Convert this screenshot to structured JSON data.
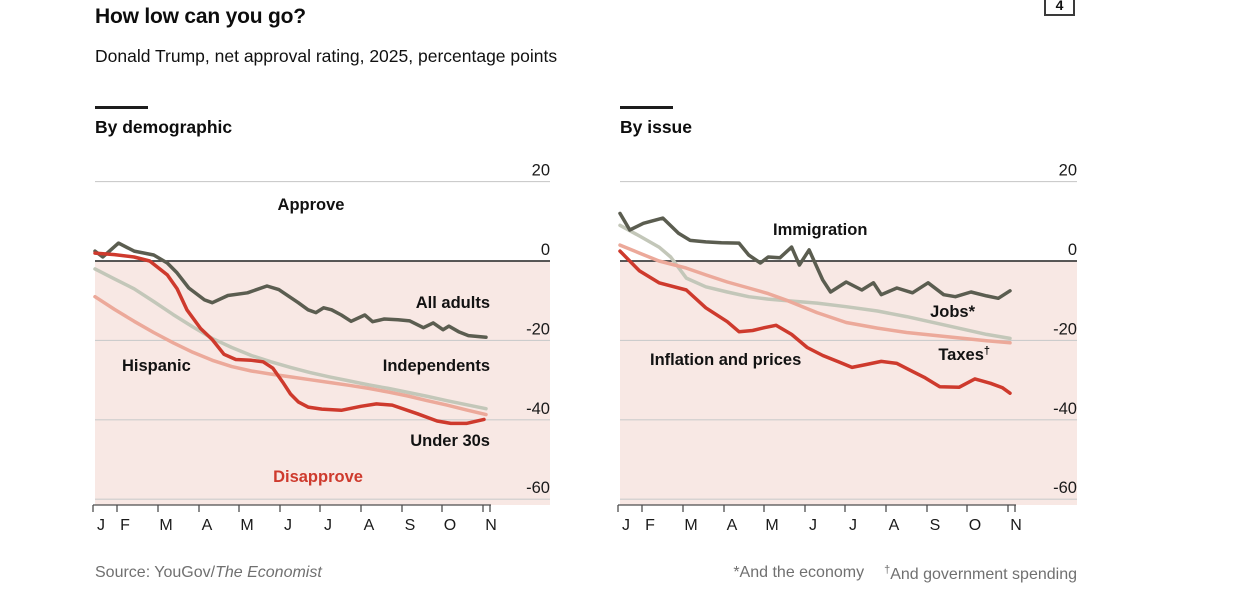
{
  "page": {
    "badge": "4"
  },
  "header": {
    "title": "How low can you go?",
    "subtitle": "Donald Trump, net approval rating, 2025, percentage points"
  },
  "footer": {
    "source_prefix": "Source: YouGov/",
    "source_italic": "The Economist",
    "footnote1": "*And the economy",
    "footnote2_symbol": "†",
    "footnote2": "And government spending"
  },
  "chart_data": [
    {
      "type": "line",
      "panel_title": "By demographic",
      "x_axis": {
        "tick_labels": [
          "J",
          "F",
          "M",
          "A",
          "M",
          "J",
          "J",
          "A",
          "S",
          "O",
          "N"
        ]
      },
      "y_axis": {
        "ticks": [
          20,
          0,
          -20,
          -40,
          -60
        ],
        "range": [
          -65,
          25
        ]
      },
      "annotations": {
        "approve": "Approve",
        "disapprove": "Disapprove"
      },
      "colors": {
        "below_zero_fill": "#f8e8e4",
        "gridline": "#cccccc",
        "zero_line": "#404040",
        "axis": "#4d4d4d"
      },
      "series": [
        {
          "name": "Independents",
          "color": "#c3c7b9",
          "points": [
            [
              0,
              -2
            ],
            [
              0.5,
              -4.5
            ],
            [
              1,
              -7
            ],
            [
              1.5,
              -10.2
            ],
            [
              2,
              -13.5
            ],
            [
              2.5,
              -16.6
            ],
            [
              3,
              -19.5
            ],
            [
              3.5,
              -21.8
            ],
            [
              4,
              -23.8
            ],
            [
              4.5,
              -25.4
            ],
            [
              5,
              -26.8
            ],
            [
              5.5,
              -28.1
            ],
            [
              6,
              -29.2
            ],
            [
              6.5,
              -30.2
            ],
            [
              7,
              -31.2
            ],
            [
              7.5,
              -32.1
            ],
            [
              8,
              -33.1
            ],
            [
              8.5,
              -34.1
            ],
            [
              9,
              -35.2
            ],
            [
              9.5,
              -36.2
            ],
            [
              10,
              -37.2
            ]
          ]
        },
        {
          "name": "Hispanic",
          "color": "#eca99a",
          "points": [
            [
              0,
              -9
            ],
            [
              0.5,
              -12.2
            ],
            [
              1,
              -15.2
            ],
            [
              1.5,
              -18
            ],
            [
              2,
              -20.6
            ],
            [
              2.5,
              -23
            ],
            [
              3,
              -25
            ],
            [
              3.5,
              -26.6
            ],
            [
              4,
              -27.7
            ],
            [
              4.5,
              -28.5
            ],
            [
              5,
              -29.2
            ],
            [
              5.5,
              -29.9
            ],
            [
              6,
              -30.6
            ],
            [
              6.5,
              -31.3
            ],
            [
              7,
              -32.1
            ],
            [
              7.5,
              -33
            ],
            [
              8,
              -34
            ],
            [
              8.5,
              -35.2
            ],
            [
              9,
              -36.3
            ],
            [
              9.5,
              -37.5
            ],
            [
              10,
              -38.7
            ]
          ]
        },
        {
          "name": "All adults",
          "color": "#5b5d50",
          "points": [
            [
              0,
              2.5
            ],
            [
              0.2,
              1
            ],
            [
              0.6,
              4.5
            ],
            [
              1,
              2.5
            ],
            [
              1.5,
              1.5
            ],
            [
              1.85,
              -0.5
            ],
            [
              2.1,
              -3
            ],
            [
              2.4,
              -6.8
            ],
            [
              2.8,
              -9.8
            ],
            [
              3,
              -10.5
            ],
            [
              3.4,
              -8.7
            ],
            [
              3.9,
              -8
            ],
            [
              4.4,
              -6.3
            ],
            [
              4.7,
              -7.2
            ],
            [
              5.2,
              -10.5
            ],
            [
              5.45,
              -12.3
            ],
            [
              5.65,
              -13
            ],
            [
              5.85,
              -11.8
            ],
            [
              6.05,
              -12.3
            ],
            [
              6.3,
              -13.6
            ],
            [
              6.55,
              -15.2
            ],
            [
              6.9,
              -13.6
            ],
            [
              7.1,
              -15.3
            ],
            [
              7.4,
              -14.6
            ],
            [
              7.75,
              -14.8
            ],
            [
              8.05,
              -15.1
            ],
            [
              8.4,
              -16.8
            ],
            [
              8.65,
              -15.6
            ],
            [
              8.9,
              -17.3
            ],
            [
              9.05,
              -16.4
            ],
            [
              9.3,
              -17.8
            ],
            [
              9.55,
              -18.8
            ],
            [
              10,
              -19.2
            ]
          ]
        },
        {
          "name": "Under 30s",
          "color": "#ce3a2d",
          "points": [
            [
              0,
              2
            ],
            [
              0.5,
              1.6
            ],
            [
              1,
              1
            ],
            [
              1.4,
              0
            ],
            [
              1.85,
              -3.5
            ],
            [
              2.1,
              -7
            ],
            [
              2.35,
              -12.3
            ],
            [
              2.7,
              -17
            ],
            [
              3,
              -19.8
            ],
            [
              3.3,
              -23.5
            ],
            [
              3.6,
              -24.8
            ],
            [
              4,
              -25
            ],
            [
              4.3,
              -25.4
            ],
            [
              4.55,
              -27
            ],
            [
              4.8,
              -30.5
            ],
            [
              5,
              -33.5
            ],
            [
              5.2,
              -35.5
            ],
            [
              5.45,
              -36.8
            ],
            [
              5.8,
              -37.3
            ],
            [
              6.3,
              -37.6
            ],
            [
              6.8,
              -36.6
            ],
            [
              7.2,
              -36
            ],
            [
              7.6,
              -36.3
            ],
            [
              8.25,
              -38.5
            ],
            [
              8.75,
              -40.3
            ],
            [
              9.1,
              -40.9
            ],
            [
              9.5,
              -40.9
            ],
            [
              9.95,
              -39.9
            ]
          ]
        }
      ]
    },
    {
      "type": "line",
      "panel_title": "By issue",
      "x_axis": {
        "tick_labels": [
          "J",
          "F",
          "M",
          "A",
          "M",
          "J",
          "J",
          "A",
          "S",
          "O",
          "N"
        ]
      },
      "y_axis": {
        "ticks": [
          20,
          0,
          -20,
          -40,
          -60
        ],
        "range": [
          -65,
          25
        ]
      },
      "annotations": {
        "taxes_base": "Taxes",
        "taxes_sup": "†"
      },
      "colors": {
        "below_zero_fill": "#f8e8e4",
        "gridline": "#cccccc",
        "zero_line": "#404040",
        "axis": "#4d4d4d"
      },
      "series": [
        {
          "name": "Jobs*",
          "color": "#c3c7b9",
          "points": [
            [
              0,
              9
            ],
            [
              0.5,
              6.3
            ],
            [
              1,
              3.5
            ],
            [
              1.3,
              1
            ],
            [
              1.7,
              -4.3
            ],
            [
              2.2,
              -6.5
            ],
            [
              2.75,
              -7.8
            ],
            [
              3.3,
              -9
            ],
            [
              3.8,
              -9.6
            ],
            [
              4.3,
              -10
            ],
            [
              5.05,
              -10.6
            ],
            [
              5.8,
              -11.5
            ],
            [
              6.6,
              -12.6
            ],
            [
              7.35,
              -14
            ],
            [
              8.4,
              -16.3
            ],
            [
              9.4,
              -18.5
            ],
            [
              10,
              -19.5
            ]
          ]
        },
        {
          "name": "Taxes†",
          "color": "#eca99a",
          "points": [
            [
              0,
              4
            ],
            [
              0.5,
              2
            ],
            [
              1,
              0
            ],
            [
              1.7,
              -1.8
            ],
            [
              2.2,
              -3.5
            ],
            [
              2.75,
              -5.3
            ],
            [
              3.3,
              -6.8
            ],
            [
              3.8,
              -8.2
            ],
            [
              4.3,
              -10
            ],
            [
              5.05,
              -13
            ],
            [
              5.8,
              -15.5
            ],
            [
              6.6,
              -16.9
            ],
            [
              7.35,
              -18
            ],
            [
              8.4,
              -19.1
            ],
            [
              9.4,
              -20.1
            ],
            [
              10,
              -20.6
            ]
          ]
        },
        {
          "name": "Inflation and prices",
          "color": "#ce3a2d",
          "points": [
            [
              0,
              2.5
            ],
            [
              0.5,
              -2.5
            ],
            [
              1,
              -5.5
            ],
            [
              1.7,
              -7.3
            ],
            [
              2.2,
              -11.8
            ],
            [
              2.75,
              -15.3
            ],
            [
              3.05,
              -17.8
            ],
            [
              3.4,
              -17.5
            ],
            [
              3.7,
              -16.8
            ],
            [
              4,
              -16.2
            ],
            [
              4.4,
              -18.5
            ],
            [
              4.8,
              -21.8
            ],
            [
              5.2,
              -23.8
            ],
            [
              5.6,
              -25.4
            ],
            [
              5.95,
              -26.8
            ],
            [
              6.3,
              -26.1
            ],
            [
              6.7,
              -25.3
            ],
            [
              7.1,
              -25.8
            ],
            [
              7.5,
              -27.8
            ],
            [
              7.8,
              -29.3
            ],
            [
              8.2,
              -31.7
            ],
            [
              8.7,
              -31.8
            ],
            [
              9.1,
              -29.7
            ],
            [
              9.5,
              -30.8
            ],
            [
              9.8,
              -31.9
            ],
            [
              10,
              -33.3
            ]
          ]
        },
        {
          "name": "Immigration",
          "color": "#5b5d50",
          "points": [
            [
              0,
              12
            ],
            [
              0.25,
              7.8
            ],
            [
              0.6,
              9.5
            ],
            [
              1.1,
              10.8
            ],
            [
              1.5,
              7
            ],
            [
              1.8,
              5.2
            ],
            [
              2.2,
              4.8
            ],
            [
              2.6,
              4.6
            ],
            [
              3.05,
              4.5
            ],
            [
              3.3,
              1.5
            ],
            [
              3.6,
              -0.5
            ],
            [
              3.8,
              1
            ],
            [
              4.1,
              0.8
            ],
            [
              4.4,
              3.5
            ],
            [
              4.6,
              -1
            ],
            [
              4.85,
              2.8
            ],
            [
              5.2,
              -4.8
            ],
            [
              5.4,
              -7.8
            ],
            [
              5.8,
              -5.3
            ],
            [
              6.2,
              -7.3
            ],
            [
              6.5,
              -5.5
            ],
            [
              6.7,
              -8.5
            ],
            [
              7.1,
              -6.8
            ],
            [
              7.5,
              -8
            ],
            [
              7.9,
              -5.5
            ],
            [
              8.3,
              -8.5
            ],
            [
              8.6,
              -9
            ],
            [
              9,
              -7.8
            ],
            [
              9.4,
              -8.8
            ],
            [
              9.7,
              -9.4
            ],
            [
              10,
              -7.5
            ]
          ]
        }
      ]
    }
  ]
}
